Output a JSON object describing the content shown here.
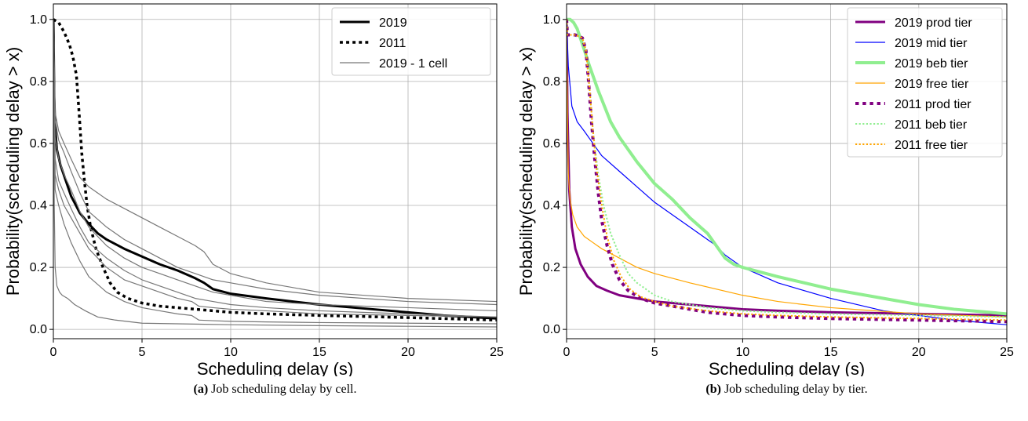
{
  "chart_data": [
    {
      "type": "line",
      "xlabel": "Scheduling delay (s)",
      "ylabel": "Probability(scheduling delay > x)",
      "xlim": [
        0,
        25
      ],
      "ylim": [
        -0.03,
        1.05
      ],
      "xticks": [
        0,
        5,
        10,
        15,
        20,
        25
      ],
      "yticks": [
        0.0,
        0.2,
        0.4,
        0.6,
        0.8,
        1.0
      ],
      "grid": true,
      "legend_position": "top-right",
      "caption_tag": "(a)",
      "caption_text": "Job scheduling delay by cell.",
      "series": [
        {
          "name": "2019",
          "color": "#000000",
          "style": "solid",
          "width": 3,
          "in_legend": true,
          "x": [
            0,
            0.05,
            0.1,
            0.2,
            0.4,
            0.7,
            1,
            1.5,
            2,
            2.5,
            3,
            4,
            5,
            6,
            7,
            8,
            8.5,
            9,
            10,
            12,
            15,
            18,
            20,
            22,
            25
          ],
          "y": [
            1.0,
            0.75,
            0.65,
            0.58,
            0.53,
            0.48,
            0.43,
            0.375,
            0.34,
            0.31,
            0.29,
            0.26,
            0.235,
            0.21,
            0.19,
            0.165,
            0.15,
            0.13,
            0.115,
            0.1,
            0.08,
            0.065,
            0.055,
            0.045,
            0.035
          ]
        },
        {
          "name": "2011",
          "color": "#000000",
          "style": "dotted",
          "width": 3.5,
          "in_legend": true,
          "x": [
            0,
            0.3,
            0.6,
            0.9,
            1.1,
            1.3,
            1.45,
            1.6,
            1.75,
            1.9,
            2.1,
            2.4,
            2.8,
            3.2,
            3.6,
            4.2,
            5,
            6,
            8,
            10,
            12,
            15,
            20,
            25
          ],
          "y": [
            1.0,
            0.99,
            0.96,
            0.92,
            0.88,
            0.82,
            0.7,
            0.57,
            0.48,
            0.4,
            0.33,
            0.26,
            0.2,
            0.15,
            0.12,
            0.1,
            0.085,
            0.075,
            0.065,
            0.055,
            0.05,
            0.045,
            0.038,
            0.03
          ]
        },
        {
          "name": "2019 - 1 cell",
          "color": "#777777",
          "style": "solid",
          "width": 1.2,
          "in_legend": true,
          "x": [
            0,
            0.1,
            0.3,
            0.6,
            1,
            1.5,
            2,
            3,
            4,
            5,
            6,
            7,
            8,
            8.5,
            9,
            10,
            12,
            15,
            20,
            25
          ],
          "y": [
            1.0,
            0.7,
            0.64,
            0.6,
            0.55,
            0.49,
            0.46,
            0.42,
            0.39,
            0.36,
            0.33,
            0.3,
            0.27,
            0.25,
            0.21,
            0.18,
            0.15,
            0.12,
            0.1,
            0.09
          ]
        },
        {
          "name": "",
          "color": "#777777",
          "style": "solid",
          "width": 1.2,
          "in_legend": false,
          "x": [
            0,
            0.1,
            0.3,
            0.6,
            1,
            1.5,
            2,
            3,
            4,
            5,
            6,
            7,
            8,
            9,
            10,
            12,
            15,
            20,
            25
          ],
          "y": [
            1.0,
            0.68,
            0.61,
            0.57,
            0.51,
            0.44,
            0.38,
            0.33,
            0.29,
            0.26,
            0.23,
            0.2,
            0.18,
            0.16,
            0.15,
            0.13,
            0.11,
            0.09,
            0.08
          ]
        },
        {
          "name": "",
          "color": "#777777",
          "style": "solid",
          "width": 1.2,
          "in_legend": false,
          "x": [
            0,
            0.1,
            0.3,
            0.6,
            1,
            1.5,
            2,
            3,
            4,
            5,
            6,
            7,
            8,
            9,
            10,
            12,
            15,
            20,
            25
          ],
          "y": [
            1.0,
            0.62,
            0.55,
            0.5,
            0.45,
            0.38,
            0.33,
            0.27,
            0.23,
            0.2,
            0.18,
            0.16,
            0.14,
            0.12,
            0.11,
            0.09,
            0.08,
            0.07,
            0.06
          ]
        },
        {
          "name": "",
          "color": "#777777",
          "style": "solid",
          "width": 1.2,
          "in_legend": false,
          "x": [
            0,
            0.1,
            0.3,
            0.6,
            1,
            1.5,
            2,
            3,
            4,
            5,
            6,
            7,
            8,
            9,
            10,
            12,
            15,
            20,
            25
          ],
          "y": [
            1.0,
            0.55,
            0.48,
            0.44,
            0.39,
            0.33,
            0.28,
            0.23,
            0.19,
            0.16,
            0.14,
            0.12,
            0.1,
            0.09,
            0.08,
            0.07,
            0.06,
            0.05,
            0.04
          ]
        },
        {
          "name": "",
          "color": "#777777",
          "style": "solid",
          "width": 1.2,
          "in_legend": false,
          "x": [
            0,
            0.1,
            0.3,
            0.6,
            1,
            1.5,
            2,
            3,
            4,
            5,
            6,
            7,
            7.8,
            8.2,
            9,
            10,
            12,
            15,
            20,
            25
          ],
          "y": [
            1.0,
            0.5,
            0.45,
            0.4,
            0.36,
            0.31,
            0.26,
            0.2,
            0.16,
            0.14,
            0.12,
            0.1,
            0.09,
            0.075,
            0.07,
            0.065,
            0.06,
            0.05,
            0.045,
            0.04
          ]
        },
        {
          "name": "",
          "color": "#777777",
          "style": "solid",
          "width": 1.2,
          "in_legend": false,
          "x": [
            0,
            0.1,
            0.3,
            0.6,
            1,
            1.5,
            2,
            3,
            4,
            5,
            6,
            7,
            7.8,
            8.2,
            9,
            10,
            12,
            15,
            20,
            25
          ],
          "y": [
            1.0,
            0.45,
            0.4,
            0.34,
            0.28,
            0.22,
            0.17,
            0.12,
            0.09,
            0.07,
            0.06,
            0.05,
            0.045,
            0.03,
            0.028,
            0.026,
            0.024,
            0.022,
            0.02,
            0.018
          ]
        },
        {
          "name": "",
          "color": "#777777",
          "style": "solid",
          "width": 1.2,
          "in_legend": false,
          "x": [
            0,
            0.05,
            0.1,
            0.2,
            0.35,
            0.5,
            0.8,
            1.2,
            1.8,
            2.5,
            3.5,
            5,
            7,
            10,
            15,
            20,
            25
          ],
          "y": [
            1.0,
            0.4,
            0.2,
            0.14,
            0.12,
            0.11,
            0.1,
            0.08,
            0.06,
            0.04,
            0.03,
            0.02,
            0.018,
            0.015,
            0.012,
            0.01,
            0.008
          ]
        }
      ]
    },
    {
      "type": "line",
      "xlabel": "Scheduling delay (s)",
      "ylabel": "Probability(scheduling delay  >  x)",
      "xlim": [
        0,
        25
      ],
      "ylim": [
        -0.03,
        1.05
      ],
      "xticks": [
        0,
        5,
        10,
        15,
        20,
        25
      ],
      "yticks": [
        0.0,
        0.2,
        0.4,
        0.6,
        0.8,
        1.0
      ],
      "grid": true,
      "legend_position": "top-right",
      "caption_tag": "(b)",
      "caption_text": "Job scheduling delay by tier.",
      "series": [
        {
          "name": "2019 prod tier",
          "color": "#800080",
          "style": "solid",
          "width": 3,
          "in_legend": true,
          "x": [
            0,
            0.05,
            0.15,
            0.3,
            0.5,
            0.8,
            1.2,
            1.7,
            2.3,
            3,
            4,
            5,
            6,
            8,
            10,
            12,
            15,
            20,
            25
          ],
          "y": [
            1.0,
            0.7,
            0.45,
            0.33,
            0.26,
            0.21,
            0.17,
            0.14,
            0.125,
            0.11,
            0.1,
            0.09,
            0.085,
            0.075,
            0.065,
            0.06,
            0.055,
            0.05,
            0.045
          ]
        },
        {
          "name": "2019 mid tier",
          "color": "#0000ff",
          "style": "solid",
          "width": 1.2,
          "in_legend": true,
          "x": [
            0,
            0.1,
            0.3,
            0.6,
            1,
            1.5,
            2,
            3,
            4,
            5,
            6,
            7,
            8,
            8.5,
            9,
            10,
            12,
            15,
            18,
            20,
            22,
            25
          ],
          "y": [
            1.0,
            0.85,
            0.72,
            0.67,
            0.64,
            0.6,
            0.56,
            0.51,
            0.46,
            0.41,
            0.37,
            0.33,
            0.29,
            0.27,
            0.24,
            0.2,
            0.15,
            0.1,
            0.06,
            0.045,
            0.03,
            0.015
          ]
        },
        {
          "name": "2019 beb tier",
          "color": "#90ee90",
          "style": "solid",
          "width": 4,
          "in_legend": true,
          "x": [
            0,
            0.2,
            0.4,
            0.6,
            0.9,
            1.3,
            1.8,
            2.5,
            3,
            4,
            5,
            6,
            7,
            8,
            8.5,
            9,
            9.5,
            10,
            12,
            15,
            18,
            20,
            22,
            25
          ],
          "y": [
            1.0,
            1.0,
            0.99,
            0.97,
            0.92,
            0.85,
            0.77,
            0.67,
            0.62,
            0.54,
            0.47,
            0.42,
            0.36,
            0.31,
            0.27,
            0.23,
            0.21,
            0.2,
            0.17,
            0.13,
            0.1,
            0.08,
            0.065,
            0.05
          ]
        },
        {
          "name": "2019 free tier",
          "color": "#ffa500",
          "style": "solid",
          "width": 1.2,
          "in_legend": true,
          "x": [
            0,
            0.05,
            0.1,
            0.2,
            0.35,
            0.6,
            1,
            1.5,
            2,
            3,
            4,
            5,
            7,
            10,
            12,
            15,
            20,
            25
          ],
          "y": [
            1.0,
            0.7,
            0.5,
            0.42,
            0.37,
            0.33,
            0.3,
            0.28,
            0.26,
            0.23,
            0.2,
            0.18,
            0.15,
            0.11,
            0.09,
            0.07,
            0.05,
            0.04
          ]
        },
        {
          "name": "2011 prod tier",
          "color": "#800080",
          "style": "dotted",
          "width": 4,
          "in_legend": true,
          "x": [
            0,
            0.05,
            0.2,
            0.5,
            0.9,
            1.1,
            1.25,
            1.4,
            1.6,
            1.8,
            2,
            2.3,
            2.6,
            3,
            3.5,
            4.2,
            5,
            6,
            8,
            10,
            12,
            15,
            20,
            25
          ],
          "y": [
            1.0,
            0.95,
            0.95,
            0.95,
            0.94,
            0.9,
            0.8,
            0.68,
            0.55,
            0.44,
            0.35,
            0.27,
            0.21,
            0.16,
            0.125,
            0.1,
            0.085,
            0.075,
            0.055,
            0.045,
            0.04,
            0.035,
            0.03,
            0.025
          ]
        },
        {
          "name": "2011 beb tier",
          "color": "#90ee90",
          "style": "dotted",
          "width": 2,
          "in_legend": true,
          "x": [
            0,
            0.05,
            0.2,
            0.5,
            0.9,
            1.1,
            1.3,
            1.5,
            1.8,
            2.1,
            2.5,
            3,
            3.5,
            4,
            5,
            6,
            8,
            10,
            12,
            15,
            20,
            25
          ],
          "y": [
            1.0,
            0.95,
            0.95,
            0.95,
            0.94,
            0.9,
            0.78,
            0.64,
            0.5,
            0.4,
            0.31,
            0.24,
            0.18,
            0.15,
            0.11,
            0.09,
            0.07,
            0.06,
            0.055,
            0.05,
            0.045,
            0.04
          ]
        },
        {
          "name": "2011 free tier",
          "color": "#ffa500",
          "style": "dotted",
          "width": 2,
          "in_legend": true,
          "x": [
            0,
            0.05,
            0.2,
            0.5,
            0.9,
            1.1,
            1.3,
            1.5,
            1.7,
            2,
            2.3,
            2.7,
            3.1,
            3.6,
            4.2,
            5,
            6,
            8,
            10,
            12,
            15,
            20,
            25
          ],
          "y": [
            1.0,
            0.95,
            0.95,
            0.95,
            0.94,
            0.9,
            0.78,
            0.64,
            0.52,
            0.4,
            0.3,
            0.22,
            0.17,
            0.13,
            0.105,
            0.09,
            0.075,
            0.06,
            0.05,
            0.045,
            0.04,
            0.035,
            0.03
          ]
        }
      ]
    }
  ]
}
